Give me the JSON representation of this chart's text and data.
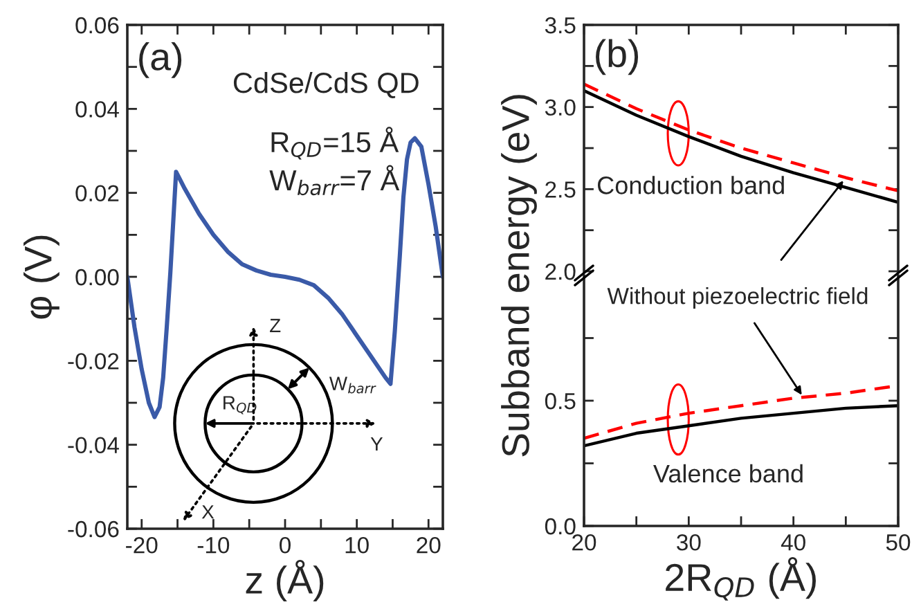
{
  "chart_data": [
    {
      "type": "line",
      "xlabel": "z (Å)",
      "ylabel": "φ (V)",
      "xlim": [
        -22,
        22
      ],
      "xticks": [
        -20,
        {
          "value": -15,
          "label": null
        },
        -10,
        {
          "value": -5,
          "label": null
        },
        0,
        {
          "value": 5,
          "label": null
        },
        10,
        {
          "value": 15,
          "label": null
        },
        20
      ],
      "ylim": [
        -0.06,
        0.06
      ],
      "yticks": [
        -0.06,
        {
          "value": -0.05,
          "label": null
        },
        -0.04,
        {
          "value": -0.03,
          "label": null
        },
        -0.02,
        {
          "value": -0.01,
          "label": null
        },
        {
          "value": 0,
          "label": "0.00"
        },
        {
          "value": 0.01,
          "label": null
        },
        0.02,
        {
          "value": 0.03,
          "label": null
        },
        0.04,
        {
          "value": 0.05,
          "label": null
        },
        0.06
      ],
      "annotations": [
        "(a)",
        "CdSe/CdS QD",
        "R$_{QD}$=15 Å",
        "W$_{barr}$=7 Å",
        "Z",
        "Y",
        "X",
        "R$_{QD}$",
        "W$_{barr}$"
      ],
      "series": [
        {
          "color": "#3a5aa8",
          "x": [
            -22,
            -21,
            -20,
            -19,
            -18.2,
            -17.5,
            -17,
            -16.5,
            -16,
            -15.5,
            -15.2,
            -14,
            -12,
            -10,
            -8,
            -6,
            -4,
            -2,
            0,
            2,
            4,
            6,
            8,
            10,
            12,
            14,
            14.7,
            15.3,
            16,
            16.5,
            17,
            17.5,
            18.1,
            19,
            20,
            21,
            22
          ],
          "values": [
            0.0,
            -0.012,
            -0.022,
            -0.03,
            -0.0334,
            -0.031,
            -0.024,
            -0.012,
            0.001,
            0.016,
            0.025,
            0.021,
            0.015,
            0.01,
            0.006,
            0.003,
            0.0015,
            0.0005,
            0.0,
            -0.0007,
            -0.002,
            -0.005,
            -0.009,
            -0.014,
            -0.019,
            -0.024,
            -0.0255,
            -0.013,
            0.005,
            0.019,
            0.028,
            0.032,
            0.033,
            0.031,
            0.022,
            0.012,
            0.0
          ]
        }
      ]
    },
    {
      "type": "line",
      "tick_labels": "y",
      "xlim": [
        20,
        50
      ],
      "xticks": [
        20,
        {
          "value": 25,
          "label": null
        },
        30,
        {
          "value": 35,
          "label": null
        },
        40,
        {
          "value": 45,
          "label": null
        },
        50
      ],
      "ylim": [
        2.0,
        3.5
      ],
      "yticks": [
        {
          "value": 2,
          "label": "2.0"
        },
        {
          "value": 2.25,
          "label": null
        },
        2.5,
        {
          "value": 2.75,
          "label": null
        },
        {
          "value": 3,
          "label": "3.0"
        },
        {
          "value": 3.25,
          "label": null
        },
        3.5
      ],
      "annotations": [
        "(b)",
        "Conduction band"
      ],
      "series": [
        {
          "color": "#000000",
          "line_style": "solid",
          "x": [
            20,
            25,
            30,
            35,
            40,
            45,
            50
          ],
          "values": [
            3.1,
            2.95,
            2.82,
            2.7,
            2.6,
            2.51,
            2.42
          ]
        },
        {
          "color": "#ff0000",
          "line_style": "dashed",
          "x": [
            20,
            25,
            30,
            35,
            40,
            45,
            50
          ],
          "values": [
            3.14,
            2.99,
            2.86,
            2.75,
            2.66,
            2.57,
            2.49
          ]
        }
      ]
    },
    {
      "type": "line",
      "xlabel": "2R$_{QD}$ (Å)",
      "ylabel": "Subband energy (eV)",
      "xlim": [
        20,
        50
      ],
      "xticks": [
        20,
        {
          "value": 25,
          "label": null
        },
        30,
        {
          "value": 35,
          "label": null
        },
        40,
        {
          "value": 45,
          "label": null
        },
        50
      ],
      "ylim": [
        0.0,
        1.0
      ],
      "yticks": [
        {
          "value": 0,
          "label": "0.0"
        },
        {
          "value": 0.25,
          "label": null
        },
        0.5,
        {
          "value": 0.75,
          "label": null
        }
      ],
      "annotations": [
        "Valence band",
        {
          "text": "Without piezoelectric field",
          "x": 41,
          "y": 0.51
        }
      ],
      "series": [
        {
          "color": "#000000",
          "line_style": "solid",
          "x": [
            20,
            25,
            30,
            35,
            40,
            45,
            50
          ],
          "values": [
            0.32,
            0.37,
            0.4,
            0.43,
            0.45,
            0.47,
            0.48
          ]
        },
        {
          "color": "#ff0000",
          "line_style": "dashed",
          "x": [
            20,
            25,
            30,
            35,
            40,
            45,
            50
          ],
          "values": [
            0.35,
            0.41,
            0.45,
            0.48,
            0.51,
            0.53,
            0.56
          ]
        }
      ]
    }
  ]
}
